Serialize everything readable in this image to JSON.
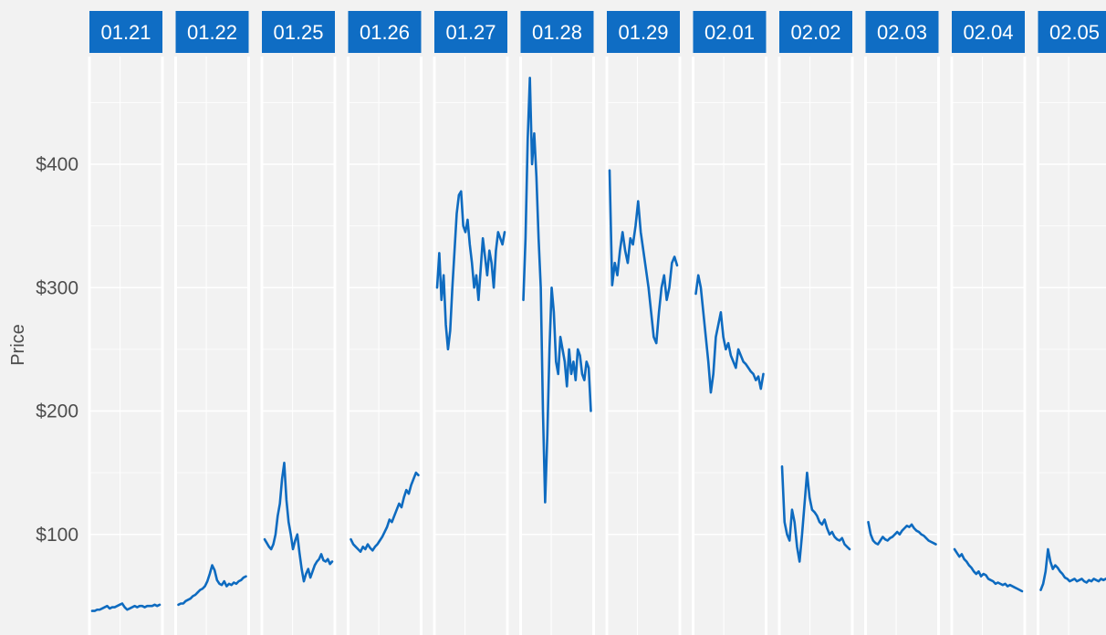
{
  "chart_data": {
    "type": "line",
    "title": "",
    "xlabel": "",
    "ylabel": "Price",
    "ylim": [
      22,
      490
    ],
    "yticks": [
      100,
      200,
      300,
      400
    ],
    "ytick_labels": [
      "$100",
      "$200",
      "$300",
      "$400"
    ],
    "grid": true,
    "facets": [
      {
        "label": "01.21",
        "values": [
          38,
          38,
          39,
          39,
          40,
          41,
          42,
          40,
          41,
          41,
          42,
          43,
          44,
          41,
          39,
          40,
          41,
          42,
          41,
          42,
          42,
          41,
          42,
          42,
          42,
          43,
          42,
          43
        ]
      },
      {
        "label": "01.22",
        "values": [
          43,
          44,
          44,
          46,
          47,
          48,
          50,
          51,
          53,
          55,
          56,
          58,
          62,
          68,
          75,
          71,
          63,
          60,
          59,
          62,
          58,
          60,
          59,
          61,
          60,
          62,
          63,
          65,
          66
        ]
      },
      {
        "label": "01.25",
        "values": [
          96,
          93,
          90,
          88,
          92,
          100,
          115,
          125,
          145,
          158,
          128,
          110,
          100,
          88,
          95,
          100,
          85,
          72,
          62,
          68,
          72,
          65,
          70,
          75,
          78,
          80,
          84,
          79,
          78,
          80,
          76,
          78
        ]
      },
      {
        "label": "01.26",
        "values": [
          96,
          92,
          90,
          88,
          86,
          90,
          88,
          92,
          89,
          87,
          90,
          92,
          95,
          98,
          102,
          106,
          112,
          110,
          115,
          120,
          125,
          122,
          130,
          136,
          133,
          140,
          145,
          150,
          148
        ]
      },
      {
        "label": "01.27",
        "values": [
          300,
          328,
          290,
          310,
          270,
          250,
          265,
          300,
          330,
          360,
          375,
          378,
          350,
          345,
          355,
          335,
          320,
          300,
          310,
          290,
          315,
          340,
          325,
          310,
          330,
          320,
          300,
          330,
          345,
          340,
          335,
          345
        ]
      },
      {
        "label": "01.28",
        "values": [
          290,
          340,
          420,
          470,
          400,
          425,
          390,
          340,
          300,
          200,
          126,
          180,
          250,
          300,
          280,
          240,
          230,
          260,
          250,
          240,
          220,
          250,
          230,
          240,
          225,
          250,
          245,
          230,
          225,
          240,
          235,
          200
        ]
      },
      {
        "label": "01.29",
        "values": [
          395,
          302,
          320,
          310,
          330,
          345,
          330,
          320,
          340,
          335,
          350,
          370,
          345,
          330,
          315,
          300,
          280,
          260,
          255,
          280,
          300,
          310,
          290,
          300,
          320,
          325,
          318
        ]
      },
      {
        "label": "02.01",
        "values": [
          295,
          310,
          300,
          280,
          260,
          240,
          215,
          230,
          260,
          270,
          280,
          260,
          250,
          255,
          245,
          240,
          235,
          250,
          245,
          240,
          238,
          235,
          232,
          230,
          225,
          228,
          218,
          230
        ]
      },
      {
        "label": "02.02",
        "values": [
          155,
          110,
          100,
          95,
          120,
          110,
          90,
          78,
          100,
          125,
          150,
          130,
          120,
          118,
          115,
          110,
          108,
          112,
          105,
          100,
          102,
          98,
          96,
          95,
          97,
          92,
          90,
          88
        ]
      },
      {
        "label": "02.03",
        "values": [
          110,
          100,
          95,
          93,
          92,
          95,
          98,
          96,
          95,
          97,
          98,
          100,
          102,
          100,
          103,
          105,
          107,
          106,
          108,
          105,
          103,
          102,
          100,
          99,
          97,
          95,
          94,
          93,
          92
        ]
      },
      {
        "label": "02.04",
        "values": [
          88,
          85,
          82,
          84,
          80,
          78,
          75,
          73,
          70,
          68,
          70,
          66,
          68,
          67,
          64,
          63,
          62,
          60,
          61,
          60,
          59,
          60,
          58,
          59,
          58,
          57,
          56,
          55,
          54
        ]
      },
      {
        "label": "02.05",
        "values": [
          55,
          60,
          70,
          88,
          78,
          72,
          75,
          73,
          70,
          68,
          65,
          64,
          62,
          63,
          64,
          62,
          63,
          64,
          62,
          61,
          63,
          62,
          64,
          63,
          62,
          64,
          63,
          64,
          65
        ]
      }
    ]
  },
  "colors": {
    "line": "#0e6bc0",
    "strip": "#0f6dc4",
    "background": "#f2f2f2",
    "grid": "#ffffff",
    "text": "#4d4d4d"
  }
}
